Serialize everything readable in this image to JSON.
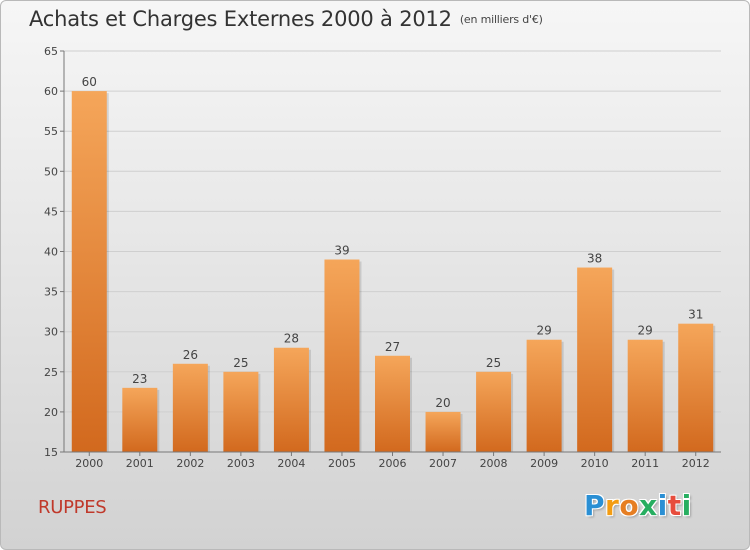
{
  "header": {
    "title": "Achats et Charges Externes 2000 à 2012",
    "unit": "(en milliers d'€)"
  },
  "footer": {
    "commune": "RUPPES",
    "logo_letters": [
      "P",
      "r",
      "o",
      "x",
      "i",
      "t",
      "i"
    ],
    "logo_colors": [
      "#2a8fd4",
      "#f39c12",
      "#e67e22",
      "#27ae60",
      "#2a8fd4",
      "#e74c3c",
      "#27ae60"
    ]
  },
  "chart_data": {
    "type": "bar",
    "categories": [
      "2000",
      "2001",
      "2002",
      "2003",
      "2004",
      "2005",
      "2006",
      "2007",
      "2008",
      "2009",
      "2010",
      "2011",
      "2012"
    ],
    "values": [
      60,
      23,
      26,
      25,
      28,
      39,
      27,
      20,
      25,
      29,
      38,
      29,
      31
    ],
    "ylim": [
      15,
      65
    ],
    "yticks": [
      15,
      20,
      25,
      30,
      35,
      40,
      45,
      50,
      55,
      60,
      65
    ],
    "grid": true,
    "bar_color_top": "#f5a65a",
    "bar_color_bottom": "#d2691e"
  }
}
